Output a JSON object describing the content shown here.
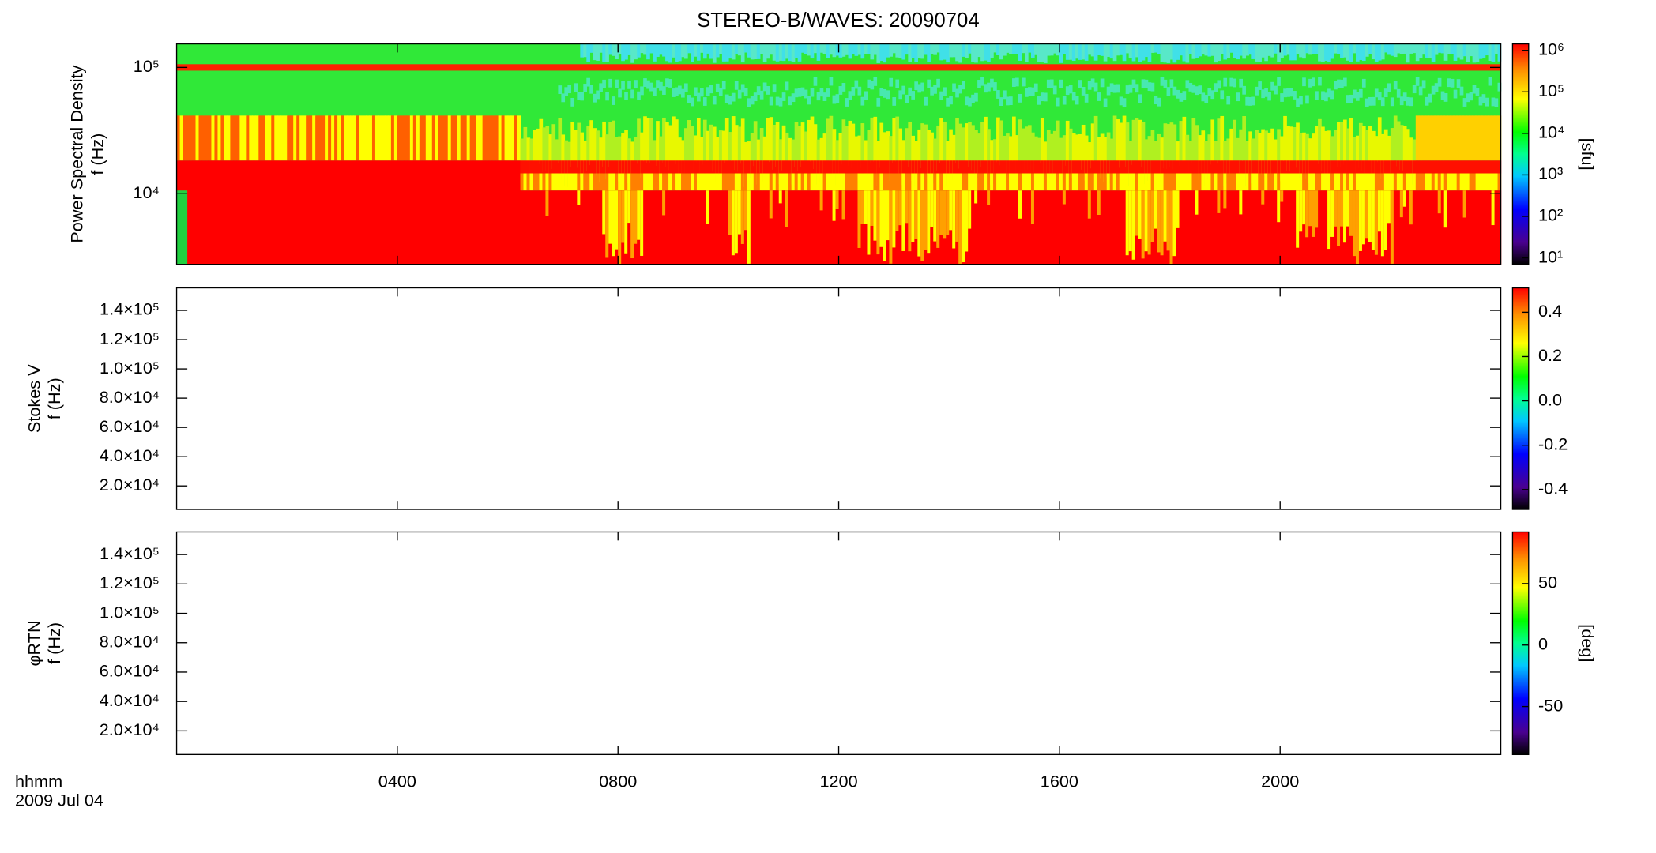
{
  "chart_data": [
    {
      "type": "heatmap",
      "title": "STEREO-B/WAVES: 20090704",
      "ylabel": [
        "Power Spectral Density",
        "f (Hz)"
      ],
      "ylog": true,
      "ylim": [
        2760,
        153600
      ],
      "yticks": [
        {
          "value": 10000,
          "label": "10⁴"
        },
        {
          "value": 100000,
          "label": "10⁵"
        }
      ],
      "colorbar": {
        "log": true,
        "clim": [
          7,
          1430000
        ],
        "label": "[sfu]",
        "ticks": [
          {
            "value": 10,
            "label": "10¹"
          },
          {
            "value": 100,
            "label": "10²"
          },
          {
            "value": 1000,
            "label": "10³"
          },
          {
            "value": 10000,
            "label": "10⁴"
          },
          {
            "value": 100000,
            "label": "10⁵"
          },
          {
            "value": 1000000,
            "label": "10⁶"
          }
        ]
      }
    },
    {
      "type": "heatmap",
      "ylabel": [
        "Stokes V",
        "f (Hz)"
      ],
      "ylog": false,
      "ylim": [
        3900,
        155400
      ],
      "yticks": [
        {
          "value": 20000,
          "label": "2.0×10⁴"
        },
        {
          "value": 40000,
          "label": "4.0×10⁴"
        },
        {
          "value": 60000,
          "label": "6.0×10⁴"
        },
        {
          "value": 80000,
          "label": "8.0×10⁴"
        },
        {
          "value": 100000,
          "label": "1.0×10⁵"
        },
        {
          "value": 120000,
          "label": "1.2×10⁵"
        },
        {
          "value": 140000,
          "label": "1.4×10⁵"
        }
      ],
      "colorbar": {
        "log": false,
        "clim": [
          -0.49,
          0.51
        ],
        "ticks": [
          -0.4,
          -0.2,
          {
            "value": 0,
            "label": "0.0"
          },
          0.2,
          0.4
        ]
      }
    },
    {
      "type": "heatmap",
      "ylabel": [
        "φRTN",
        "f (Hz)"
      ],
      "ylog": false,
      "ylim": [
        3900,
        155400
      ],
      "yticks": [
        {
          "value": 20000,
          "label": "2.0×10⁴"
        },
        {
          "value": 40000,
          "label": "4.0×10⁴"
        },
        {
          "value": 60000,
          "label": "6.0×10⁴"
        },
        {
          "value": 80000,
          "label": "8.0×10⁴"
        },
        {
          "value": 100000,
          "label": "1.0×10⁵"
        },
        {
          "value": 120000,
          "label": "1.2×10⁵"
        },
        {
          "value": 140000,
          "label": "1.4×10⁵"
        }
      ],
      "colorbar": {
        "log": false,
        "clim": [
          -89,
          92
        ],
        "label": "[deg]",
        "ticks": [
          -50,
          0,
          50
        ]
      },
      "xlabel": [
        "hhmm",
        "2009 Jul 04"
      ],
      "xlim": [
        0,
        24
      ],
      "xticks": [
        {
          "value": 4,
          "label": "0400"
        },
        {
          "value": 8,
          "label": "0800"
        },
        {
          "value": 12,
          "label": "1200"
        },
        {
          "value": 16,
          "label": "1600"
        },
        {
          "value": 20,
          "label": "2000"
        }
      ]
    }
  ]
}
